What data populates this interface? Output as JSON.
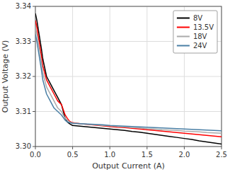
{
  "chart_data": {
    "type": "line",
    "xlabel": "Output Current (A)",
    "ylabel": "Output Voltage (V)",
    "x": [
      0.0,
      0.02,
      0.05,
      0.08,
      0.1,
      0.15,
      0.2,
      0.25,
      0.3,
      0.35,
      0.4,
      0.43,
      0.46,
      0.5,
      0.6,
      0.7,
      0.8,
      0.9,
      1.0,
      1.1,
      1.2,
      1.3,
      1.4,
      1.5,
      1.6,
      1.7,
      1.8,
      1.9,
      2.0,
      2.1,
      2.2,
      2.3,
      2.4,
      2.5
    ],
    "series": [
      {
        "name": "8V",
        "color": "#000000",
        "values": [
          3.338,
          3.336,
          3.332,
          3.328,
          3.325,
          3.32,
          3.318,
          3.316,
          3.314,
          3.312,
          3.308,
          3.307,
          3.3065,
          3.306,
          3.3058,
          3.3056,
          3.3054,
          3.3052,
          3.305,
          3.3048,
          3.3046,
          3.3043,
          3.3041,
          3.3038,
          3.3035,
          3.3032,
          3.3029,
          3.3026,
          3.3023,
          3.302,
          3.3016,
          3.3013,
          3.301,
          3.3007
        ]
      },
      {
        "name": "13.5V",
        "color": "#ff0000",
        "values": [
          3.336,
          3.334,
          3.33,
          3.326,
          3.323,
          3.319,
          3.317,
          3.315,
          3.313,
          3.312,
          3.309,
          3.308,
          3.3072,
          3.3068,
          3.3065,
          3.3063,
          3.3061,
          3.3059,
          3.3057,
          3.3055,
          3.3054,
          3.3052,
          3.305,
          3.3048,
          3.3046,
          3.3044,
          3.3042,
          3.304,
          3.3038,
          3.3036,
          3.3034,
          3.3032,
          3.303,
          3.3028
        ]
      },
      {
        "name": "18V",
        "color": "#aaaaaa",
        "values": [
          3.334,
          3.332,
          3.328,
          3.324,
          3.321,
          3.317,
          3.315,
          3.313,
          3.311,
          3.31,
          3.308,
          3.3075,
          3.307,
          3.3067,
          3.3065,
          3.3063,
          3.3062,
          3.306,
          3.3059,
          3.3057,
          3.3056,
          3.3054,
          3.3053,
          3.3051,
          3.305,
          3.3048,
          3.3047,
          3.3046,
          3.3044,
          3.3043,
          3.3042,
          3.304,
          3.3039,
          3.3038
        ]
      },
      {
        "name": "24V",
        "color": "#4a7fa5",
        "values": [
          3.332,
          3.33,
          3.326,
          3.322,
          3.319,
          3.315,
          3.313,
          3.311,
          3.31,
          3.309,
          3.3075,
          3.307,
          3.3068,
          3.3066,
          3.3065,
          3.3064,
          3.3063,
          3.3062,
          3.306,
          3.3059,
          3.3058,
          3.3057,
          3.3056,
          3.3055,
          3.3054,
          3.3053,
          3.3052,
          3.3051,
          3.305,
          3.3049,
          3.3048,
          3.3047,
          3.3046,
          3.3045
        ]
      }
    ],
    "xlim": [
      0,
      2.5
    ],
    "ylim": [
      3.3,
      3.34
    ],
    "xticks": [
      {
        "value": 0,
        "label": "0.0"
      },
      0.5,
      {
        "value": 1,
        "label": "1.0"
      },
      1.5,
      {
        "value": 2,
        "label": "2.0"
      },
      2.5
    ],
    "yticks": [
      {
        "value": 3.3,
        "label": "3.30"
      },
      3.31,
      3.32,
      3.33,
      3.34
    ],
    "grid": true,
    "legend": "upper right"
  }
}
